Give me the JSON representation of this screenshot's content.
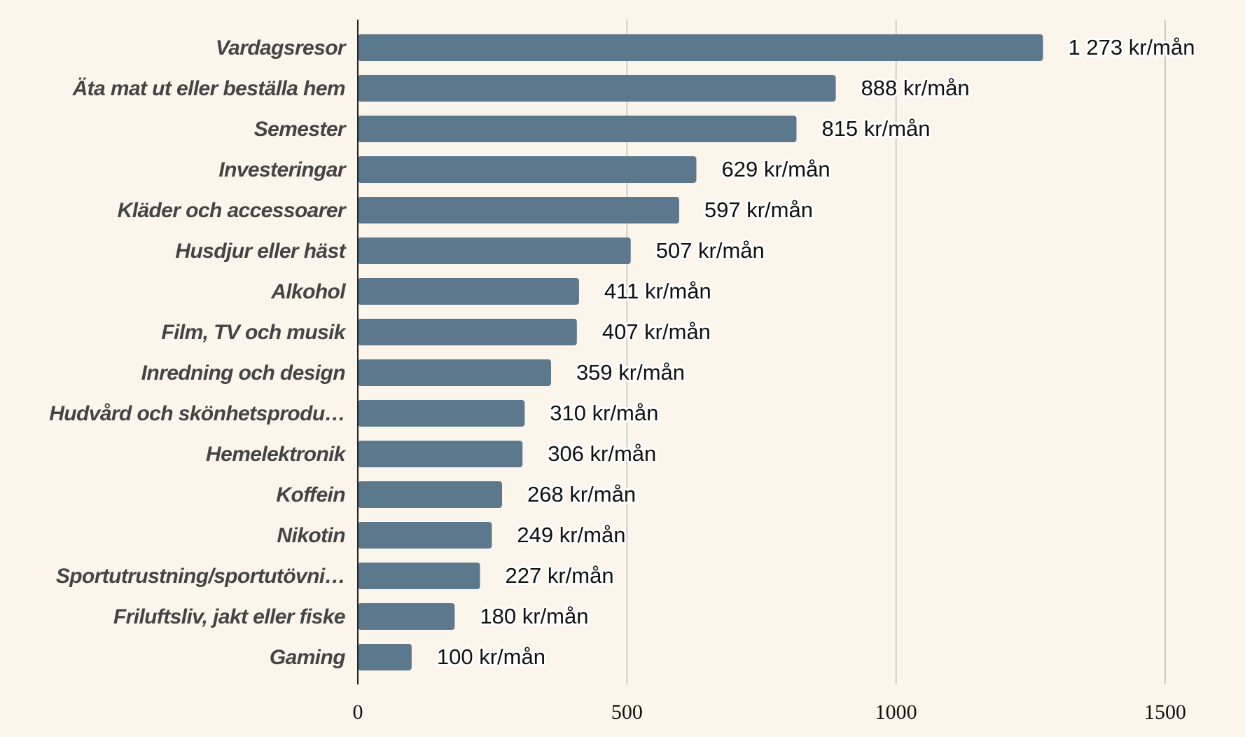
{
  "chart_data": {
    "type": "bar",
    "orientation": "horizontal",
    "title": "",
    "xlabel": "",
    "ylabel": "",
    "categories": [
      "Vardagsresor",
      "Äta mat ut eller beställa hem",
      "Semester",
      "Investeringar",
      "Kläder och accessoarer",
      "Husdjur eller häst",
      "Alkohol",
      "Film, TV och musik",
      "Inredning och design",
      "Hudvård och skönhetsprodu…",
      "Hemelektronik",
      "Koffein",
      "Nikotin",
      "Sportutrustning/sportutövni…",
      "Friluftsliv, jakt eller fiske",
      "Gaming"
    ],
    "values": [
      1273,
      888,
      815,
      629,
      597,
      507,
      411,
      407,
      359,
      310,
      306,
      268,
      249,
      227,
      180,
      100
    ],
    "value_labels": [
      "1 273 kr/mån",
      "888 kr/mån",
      "815 kr/mån",
      "629 kr/mån",
      "597 kr/mån",
      "507 kr/mån",
      "411 kr/mån",
      "407 kr/mån",
      "359 kr/mån",
      "310 kr/mån",
      "306 kr/mån",
      "268 kr/mån",
      "249 kr/mån",
      "227 kr/mån",
      "180 kr/mån",
      "100 kr/mån"
    ],
    "xlim": [
      0,
      1500
    ],
    "xticks": [
      0,
      500,
      1000,
      1500
    ],
    "xtick_labels": [
      "0",
      "500",
      "1000",
      "1500"
    ],
    "grid": true,
    "colors": {
      "bar": "#5b788c",
      "grid": "#cccccc",
      "background": "#fcf5ec"
    }
  }
}
